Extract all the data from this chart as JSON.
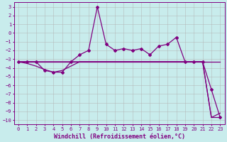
{
  "xlabel": "Windchill (Refroidissement éolien,°C)",
  "background_color": "#c8ecec",
  "line_color": "#800080",
  "xlim": [
    -0.5,
    23.5
  ],
  "ylim": [
    -10.5,
    3.5
  ],
  "yticks": [
    3,
    2,
    1,
    0,
    -1,
    -2,
    -3,
    -4,
    -5,
    -6,
    -7,
    -8,
    -9,
    -10
  ],
  "xticks": [
    0,
    1,
    2,
    3,
    4,
    5,
    6,
    7,
    8,
    9,
    10,
    11,
    12,
    13,
    14,
    15,
    16,
    17,
    18,
    19,
    20,
    21,
    22,
    23
  ],
  "series1_x": [
    0,
    1,
    2,
    3,
    4,
    5,
    6,
    7,
    8,
    9,
    10,
    11,
    12,
    13,
    14,
    15,
    16,
    17,
    18,
    19,
    20,
    21,
    22,
    23
  ],
  "series1_y": [
    -3.3,
    -3.3,
    -3.3,
    -3.3,
    -3.3,
    -3.3,
    -3.3,
    -3.3,
    -3.3,
    -3.3,
    -3.3,
    -3.3,
    -3.3,
    -3.3,
    -3.3,
    -3.3,
    -3.3,
    -3.3,
    -3.3,
    -3.3,
    -3.3,
    -3.3,
    -3.3,
    -3.3
  ],
  "series2_x": [
    0,
    1,
    2,
    3,
    4,
    5,
    6,
    7,
    8,
    9,
    10,
    11,
    12,
    13,
    14,
    15,
    16,
    17,
    18,
    19,
    20,
    21,
    22,
    23
  ],
  "series2_y": [
    -3.3,
    -3.5,
    -3.8,
    -4.2,
    -4.5,
    -4.3,
    -3.8,
    -3.3,
    -3.3,
    -3.3,
    -3.3,
    -3.3,
    -3.3,
    -3.3,
    -3.3,
    -3.3,
    -3.3,
    -3.3,
    -3.3,
    -3.3,
    -3.3,
    -3.3,
    -9.7,
    -9.7
  ],
  "series3_x": [
    0,
    1,
    2,
    3,
    4,
    5,
    6,
    7,
    8,
    9,
    10,
    11,
    12,
    13,
    14,
    15,
    16,
    17,
    18,
    19,
    20,
    21,
    22,
    23
  ],
  "series3_y": [
    -3.3,
    -3.3,
    -3.3,
    -4.3,
    -4.5,
    -4.5,
    -3.3,
    -2.5,
    -2.0,
    3.0,
    -1.3,
    -2.0,
    -1.8,
    -2.0,
    -1.8,
    -2.5,
    -1.5,
    -1.3,
    -0.5,
    -3.3,
    -3.3,
    -3.3,
    -6.5,
    -9.7
  ],
  "series4_x": [
    0,
    1,
    2,
    3,
    4,
    5,
    6,
    7,
    8,
    9,
    10,
    11,
    12,
    13,
    14,
    15,
    16,
    17,
    18,
    19,
    20,
    21,
    22,
    23
  ],
  "series4_y": [
    -3.3,
    -3.3,
    -3.3,
    -3.3,
    -3.3,
    -3.3,
    -3.3,
    -3.3,
    -3.3,
    -3.3,
    -3.3,
    -3.3,
    -3.3,
    -3.3,
    -3.3,
    -3.3,
    -3.3,
    -3.3,
    -3.3,
    -3.3,
    -3.3,
    -3.3,
    -9.7,
    -9.2
  ],
  "grid_color": "#b0b0b0",
  "marker": "D",
  "markersize": 2.0,
  "linewidth": 0.9,
  "tick_fontsize": 5.0,
  "label_fontsize": 6.0
}
